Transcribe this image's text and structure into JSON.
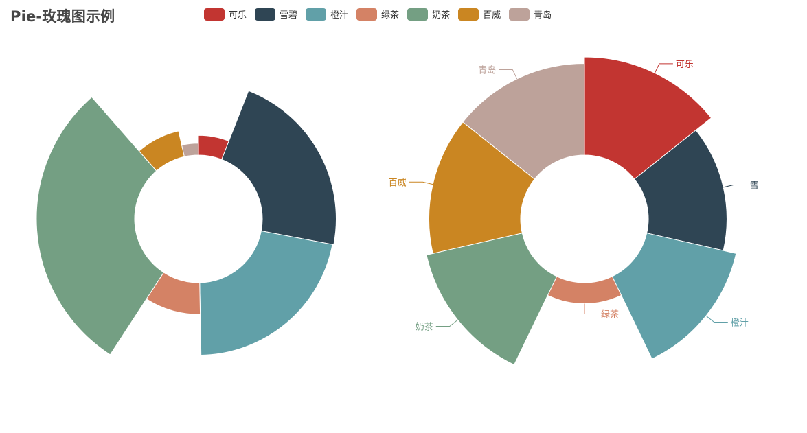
{
  "title": "Pie-玫瑰图示例",
  "chart_data": [
    {
      "type": "pie",
      "variant": "rose-radius",
      "title": "Pie-玫瑰图示例",
      "labels_shown": false,
      "categories": [
        "可乐",
        "雪碧",
        "橙汁",
        "绿茶",
        "奶茶",
        "百威",
        "青岛"
      ],
      "values": [
        30,
        112,
        110,
        48,
        149,
        40,
        18
      ]
    },
    {
      "type": "pie",
      "variant": "rose-area",
      "labels_shown": true,
      "categories": [
        "可乐",
        "雪碧",
        "橙汁",
        "绿茶",
        "奶茶",
        "百威",
        "青岛"
      ],
      "values": [
        150,
        120,
        140,
        32,
        150,
        140,
        140
      ],
      "visible_labels": [
        "可乐",
        "雪",
        "橙汁",
        "绿茶",
        "奶茶",
        "百威",
        "青岛"
      ]
    }
  ],
  "legend": [
    {
      "name": "可乐",
      "color": "#c23531"
    },
    {
      "name": "雪碧",
      "color": "#2f4554"
    },
    {
      "name": "橙汁",
      "color": "#61a0a8"
    },
    {
      "name": "绿茶",
      "color": "#d48265"
    },
    {
      "name": "奶茶",
      "color": "#749f83"
    },
    {
      "name": "百威",
      "color": "#ca8622"
    },
    {
      "name": "青岛",
      "color": "#bda29a"
    }
  ]
}
